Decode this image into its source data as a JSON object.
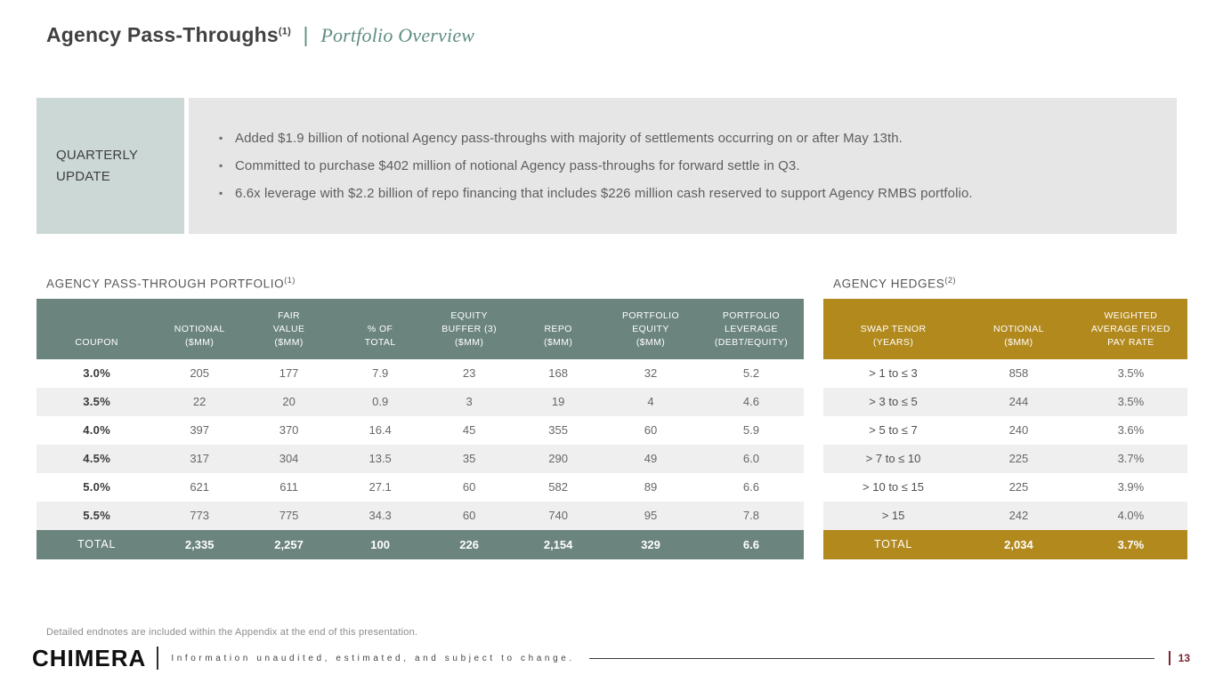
{
  "title": {
    "main": "Agency Pass-Throughs",
    "sup": "(1)",
    "separator": "|",
    "subtitle": "Portfolio Overview"
  },
  "quarterly_update": {
    "label": "QUARTERLY\nUPDATE",
    "bullets": [
      "Added $1.9 billion of notional Agency pass-throughs with majority of settlements occurring on or after May 13th.",
      "Committed to purchase $402 million of notional Agency pass-throughs for forward settle in Q3.",
      "6.6x leverage with $2.2 billion of repo financing that includes $226 million cash reserved to support Agency RMBS portfolio."
    ]
  },
  "portfolio_table": {
    "title": "AGENCY PASS-THROUGH PORTFOLIO",
    "title_sup": "(1)",
    "headers": [
      "COUPON",
      "NOTIONAL\n($MM)",
      "FAIR\nVALUE\n($MM)",
      "% OF\nTOTAL",
      "EQUITY\nBUFFER (3)\n($MM)",
      "REPO\n($MM)",
      "PORTFOLIO\nEQUITY\n($MM)",
      "PORTFOLIO\nLEVERAGE\n(DEBT/EQUITY)"
    ],
    "rows": [
      [
        "3.0%",
        "205",
        "177",
        "7.9",
        "23",
        "168",
        "32",
        "5.2"
      ],
      [
        "3.5%",
        "22",
        "20",
        "0.9",
        "3",
        "19",
        "4",
        "4.6"
      ],
      [
        "4.0%",
        "397",
        "370",
        "16.4",
        "45",
        "355",
        "60",
        "5.9"
      ],
      [
        "4.5%",
        "317",
        "304",
        "13.5",
        "35",
        "290",
        "49",
        "6.0"
      ],
      [
        "5.0%",
        "621",
        "611",
        "27.1",
        "60",
        "582",
        "89",
        "6.6"
      ],
      [
        "5.5%",
        "773",
        "775",
        "34.3",
        "60",
        "740",
        "95",
        "7.8"
      ]
    ],
    "total": [
      "TOTAL",
      "2,335",
      "2,257",
      "100",
      "226",
      "2,154",
      "329",
      "6.6"
    ]
  },
  "hedges_table": {
    "title": "AGENCY HEDGES",
    "title_sup": "(2)",
    "headers": [
      "SWAP TENOR\n(YEARS)",
      "NOTIONAL\n($MM)",
      "WEIGHTED\nAVERAGE FIXED\nPAY RATE"
    ],
    "rows": [
      [
        "> 1 to ≤ 3",
        "858",
        "3.5%"
      ],
      [
        "> 3 to ≤ 5",
        "244",
        "3.5%"
      ],
      [
        "> 5 to ≤ 7",
        "240",
        "3.6%"
      ],
      [
        "> 7 to ≤ 10",
        "225",
        "3.7%"
      ],
      [
        "> 10 to ≤ 15",
        "225",
        "3.9%"
      ],
      [
        "> 15",
        "242",
        "4.0%"
      ]
    ],
    "total": [
      "TOTAL",
      "2,034",
      "3.7%"
    ]
  },
  "footer": {
    "endnote": "Detailed endnotes are included within the Appendix at the end of this presentation.",
    "logo": "CHIMERA",
    "disclaimer": "Information unaudited, estimated, and subject to change.",
    "page_number": "13"
  },
  "colors": {
    "table_header_teal": "#6b847d",
    "table_header_gold": "#b2891d",
    "quarterly_box": "#ccd8d5",
    "update_box": "#e6e6e6",
    "row_stripe": "#f0efef",
    "accent_teal_text": "#5f8d82",
    "page_number_maroon": "#7d2433"
  }
}
